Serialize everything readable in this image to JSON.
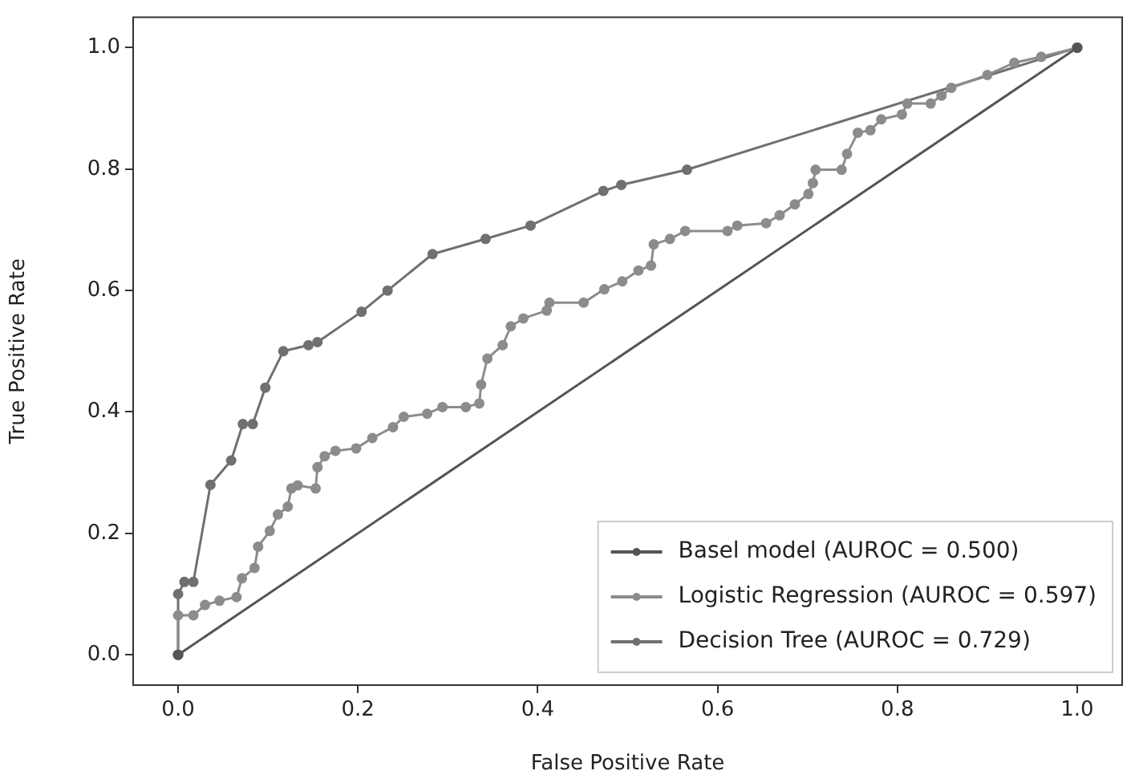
{
  "chart_data": {
    "type": "line",
    "xlabel": "False Positive Rate",
    "ylabel": "True Positive Rate",
    "xlim": [
      -0.05,
      1.05
    ],
    "ylim": [
      -0.05,
      1.05
    ],
    "xticks": [
      {
        "value": 0,
        "label": "0.0"
      },
      {
        "value": 0.2,
        "label": "0.2"
      },
      {
        "value": 0.4,
        "label": "0.4"
      },
      {
        "value": 0.6,
        "label": "0.6"
      },
      {
        "value": 0.8,
        "label": "0.8"
      },
      {
        "value": 1,
        "label": "1.0"
      }
    ],
    "yticks": [
      {
        "value": 0,
        "label": "0.0"
      },
      {
        "value": 0.2,
        "label": "0.2"
      },
      {
        "value": 0.4,
        "label": "0.4"
      },
      {
        "value": 0.6,
        "label": "0.6"
      },
      {
        "value": 0.8,
        "label": "0.8"
      },
      {
        "value": 1,
        "label": "1.0"
      }
    ],
    "grid": false,
    "legend": "bottom right",
    "marker": "circle",
    "line_style": "solid",
    "series": [
      {
        "name": "Basel model (AUROC = 0.500)",
        "color": "#555555",
        "x": [
          0,
          1
        ],
        "values": [
          0,
          1
        ]
      },
      {
        "name": "Logistic Regression (AUROC = 0.597)",
        "color": "#8c8c8c",
        "x": [
          0,
          0,
          0.017,
          0.03,
          0.046,
          0.065,
          0.071,
          0.085,
          0.089,
          0.102,
          0.111,
          0.122,
          0.126,
          0.133,
          0.153,
          0.155,
          0.163,
          0.175,
          0.198,
          0.216,
          0.239,
          0.251,
          0.277,
          0.294,
          0.32,
          0.335,
          0.337,
          0.344,
          0.361,
          0.37,
          0.384,
          0.41,
          0.413,
          0.451,
          0.474,
          0.494,
          0.512,
          0.526,
          0.529,
          0.547,
          0.564,
          0.611,
          0.622,
          0.654,
          0.669,
          0.686,
          0.701,
          0.706,
          0.709,
          0.738,
          0.744,
          0.756,
          0.77,
          0.782,
          0.805,
          0.811,
          0.837,
          0.849,
          0.86,
          0.9,
          0.93,
          0.96,
          1
        ],
        "values": [
          0,
          0.065,
          0.065,
          0.082,
          0.089,
          0.095,
          0.126,
          0.143,
          0.178,
          0.204,
          0.231,
          0.244,
          0.274,
          0.279,
          0.274,
          0.309,
          0.327,
          0.336,
          0.34,
          0.357,
          0.375,
          0.392,
          0.397,
          0.408,
          0.408,
          0.414,
          0.445,
          0.488,
          0.51,
          0.541,
          0.554,
          0.567,
          0.58,
          0.58,
          0.602,
          0.615,
          0.633,
          0.641,
          0.676,
          0.685,
          0.698,
          0.698,
          0.707,
          0.711,
          0.724,
          0.742,
          0.759,
          0.777,
          0.799,
          0.799,
          0.825,
          0.86,
          0.864,
          0.882,
          0.89,
          0.908,
          0.908,
          0.921,
          0.934,
          0.955,
          0.975,
          0.985,
          1
        ]
      },
      {
        "name": "Decision Tree (AUROC = 0.729)",
        "color": "#707070",
        "x": [
          0,
          0,
          0.007,
          0.017,
          0.036,
          0.059,
          0.072,
          0.083,
          0.097,
          0.117,
          0.145,
          0.155,
          0.204,
          0.233,
          0.283,
          0.342,
          0.392,
          0.473,
          0.493,
          0.566,
          1
        ],
        "values": [
          0,
          0.1,
          0.12,
          0.12,
          0.28,
          0.32,
          0.38,
          0.38,
          0.44,
          0.5,
          0.51,
          0.515,
          0.565,
          0.6,
          0.66,
          0.685,
          0.707,
          0.764,
          0.774,
          0.799,
          1
        ]
      }
    ]
  }
}
